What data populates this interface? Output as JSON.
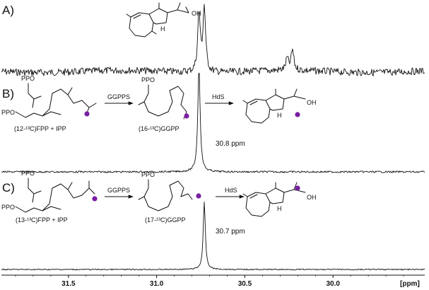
{
  "panels": [
    {
      "label": "A)"
    },
    {
      "label": "B)",
      "substrate": "(12-¹³C)FPP + IPP",
      "enzyme1": "GGPPS",
      "intermediate": "(16-¹³C)GGPP",
      "enzyme2": "HdS",
      "shift": "30.8 ppm"
    },
    {
      "label": "C)",
      "substrate": "(13-¹³C)FPP + IPP",
      "enzyme1": "GGPPS",
      "intermediate": "(17-¹³C)GGPP",
      "enzyme2": "HdS",
      "shift": "30.7 ppm"
    }
  ],
  "molecule_labels": {
    "pp": "PPO",
    "oh": "OH",
    "h": "H"
  },
  "colors": {
    "label_dot": "#7a1fa2",
    "trace": "#111111"
  },
  "axis": {
    "unit": "[ppm]",
    "ticks": [
      "31.5",
      "31.0",
      "30.5",
      "30.0"
    ],
    "range": [
      31.88,
      29.48
    ]
  },
  "chart_data": [
    {
      "type": "line",
      "panel": "A",
      "xlabel": "[ppm]",
      "x_range": [
        31.88,
        29.48
      ],
      "peaks": [
        {
          "x": 30.76,
          "y": 1.0
        },
        {
          "x": 30.73,
          "y": 1.1
        },
        {
          "x": 30.23,
          "y": 0.35
        },
        {
          "x": 30.26,
          "y": 0.2
        }
      ]
    },
    {
      "type": "line",
      "panel": "B",
      "xlabel": "[ppm]",
      "x_range": [
        31.88,
        29.48
      ],
      "peaks": [
        {
          "x": 30.76,
          "y": 1.0
        }
      ]
    },
    {
      "type": "line",
      "panel": "C",
      "xlabel": "[ppm]",
      "x_range": [
        31.88,
        29.48
      ],
      "peaks": [
        {
          "x": 30.73,
          "y": 1.0
        }
      ]
    }
  ]
}
